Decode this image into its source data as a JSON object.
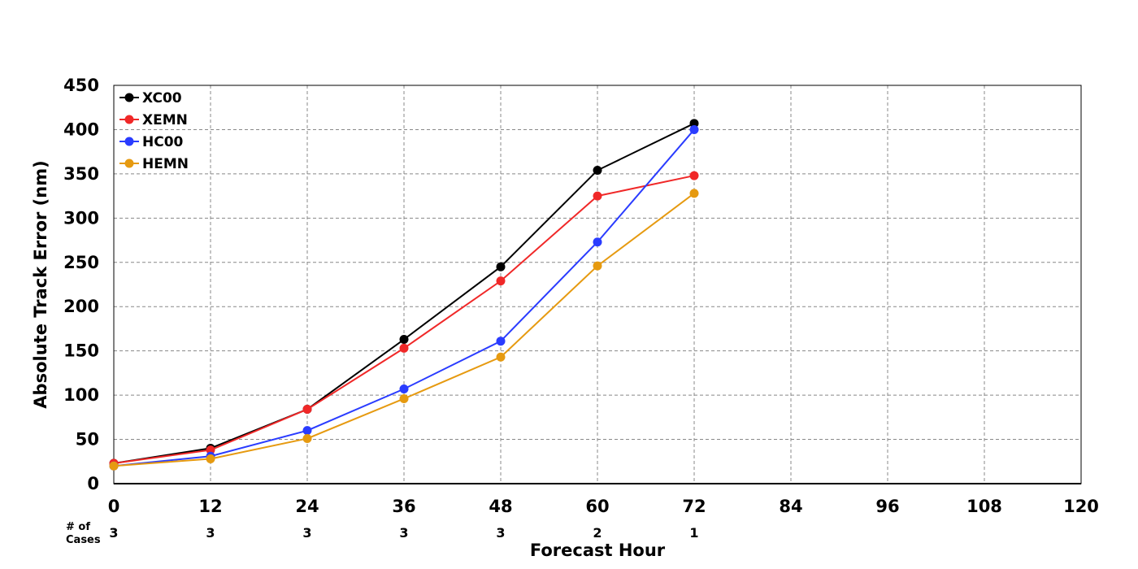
{
  "chart_data": {
    "type": "line",
    "title": "",
    "xlabel": "Forecast Hour",
    "ylabel": "Absolute Track Error (nm)",
    "xlim": [
      0,
      120
    ],
    "ylim": [
      0,
      450
    ],
    "x_ticks": [
      0,
      12,
      24,
      36,
      48,
      60,
      72,
      84,
      96,
      108,
      120
    ],
    "y_ticks": [
      0,
      50,
      100,
      150,
      200,
      250,
      300,
      350,
      400,
      450
    ],
    "grid": true,
    "legend_position": "top-left",
    "x": [
      0,
      12,
      24,
      36,
      48,
      60,
      72
    ],
    "series": [
      {
        "name": "XC00",
        "color": "#000000",
        "values": [
          23,
          40,
          84,
          163,
          245,
          354,
          407
        ]
      },
      {
        "name": "XEMN",
        "color": "#f02828",
        "values": [
          23,
          38,
          84,
          153,
          229,
          325,
          348
        ]
      },
      {
        "name": "HC00",
        "color": "#2a3cff",
        "values": [
          20,
          31,
          60,
          107,
          161,
          273,
          400
        ]
      },
      {
        "name": "HEMN",
        "color": "#e69a10",
        "values": [
          20,
          28,
          51,
          96,
          143,
          246,
          328
        ]
      }
    ],
    "cases": {
      "label_line1": "# of",
      "label_line2": "Cases",
      "x": [
        0,
        12,
        24,
        36,
        48,
        60,
        72
      ],
      "counts": [
        "3",
        "3",
        "3",
        "3",
        "3",
        "2",
        "1"
      ]
    }
  }
}
